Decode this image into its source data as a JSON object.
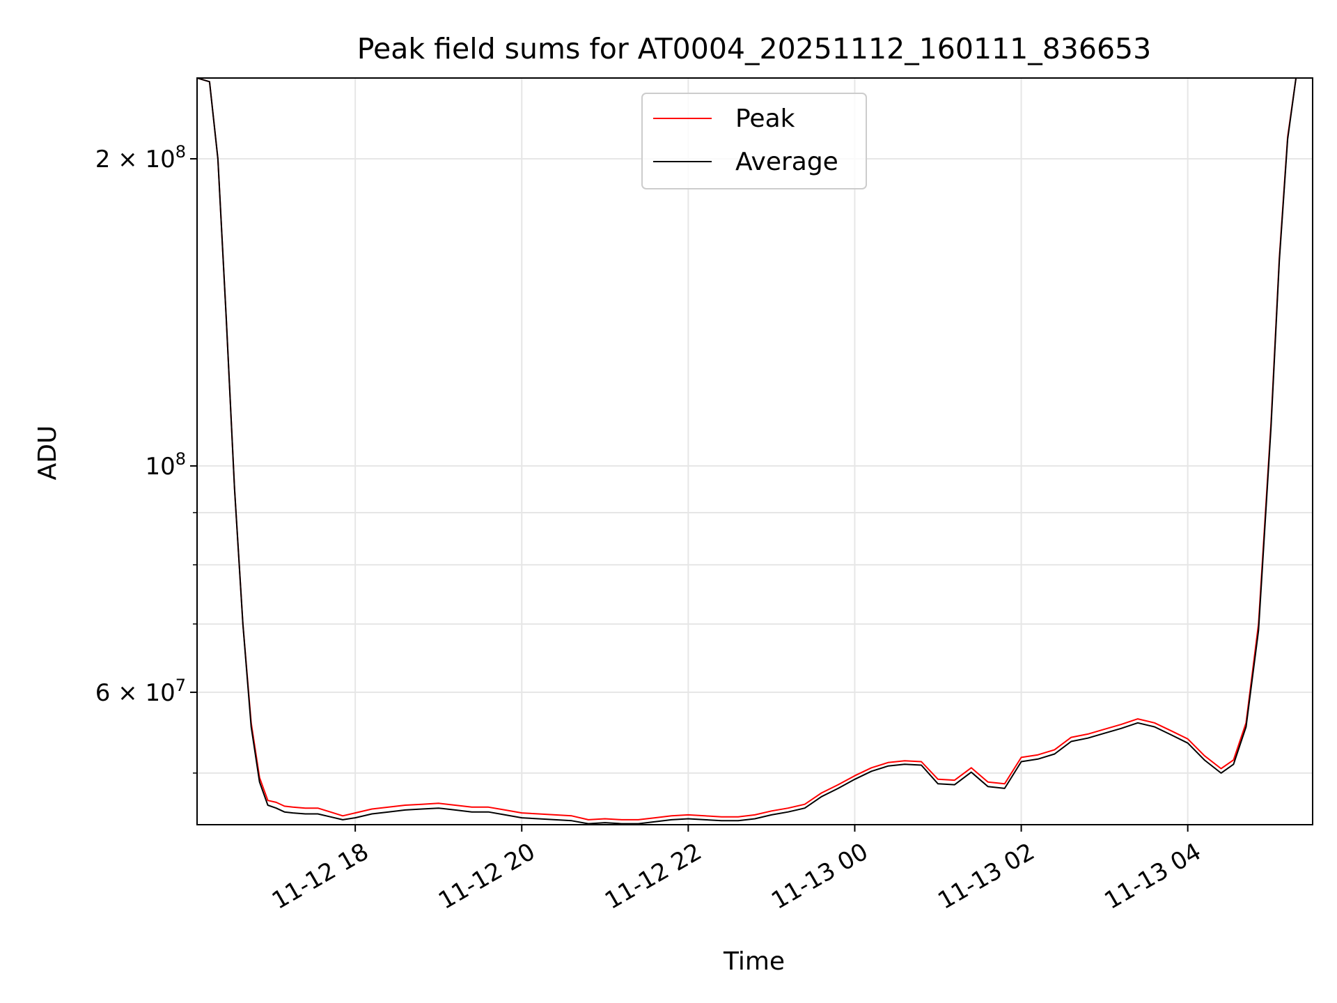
{
  "colors": {
    "peak": "#ff0000",
    "average": "#000000",
    "grid": "#e6e6e6",
    "axes": "#000000",
    "legend_border": "#cccccc"
  },
  "chart_data": {
    "type": "line",
    "title": "Peak field sums for AT0004_20251112_160111_836653",
    "xlabel": "Time",
    "ylabel": "ADU",
    "yscale": "log",
    "grid": true,
    "legend_position": "upper-center",
    "x_unit": "hours since 2025-11-12 16:00",
    "xlim": [
      16.1,
      29.5
    ],
    "ylim": [
      44500000,
      240000000
    ],
    "x_ticks": [
      {
        "x": 18,
        "label": "11-12 18"
      },
      {
        "x": 20,
        "label": "11-12 20"
      },
      {
        "x": 22,
        "label": "11-12 22"
      },
      {
        "x": 24,
        "label": "11-13 00"
      },
      {
        "x": 26,
        "label": "11-13 02"
      },
      {
        "x": 28,
        "label": "11-13 04"
      }
    ],
    "y_major_ticks": [
      {
        "value": 60000000,
        "base": "6 × 10",
        "exp": "7"
      },
      {
        "value": 100000000,
        "base": "10",
        "exp": "8"
      },
      {
        "value": 200000000,
        "base": "2 × 10",
        "exp": "8"
      }
    ],
    "y_minor_ticks": [
      50000000,
      70000000,
      80000000,
      90000000
    ],
    "x": [
      16.1,
      16.25,
      16.35,
      16.45,
      16.55,
      16.65,
      16.75,
      16.85,
      16.95,
      17.05,
      17.15,
      17.25,
      17.4,
      17.55,
      17.7,
      17.85,
      18.0,
      18.2,
      18.4,
      18.6,
      18.8,
      19.0,
      19.2,
      19.4,
      19.6,
      19.8,
      20.0,
      20.2,
      20.4,
      20.6,
      20.8,
      21.0,
      21.2,
      21.4,
      21.6,
      21.8,
      22.0,
      22.2,
      22.4,
      22.6,
      22.8,
      23.0,
      23.2,
      23.4,
      23.6,
      23.8,
      24.0,
      24.2,
      24.4,
      24.6,
      24.8,
      25.0,
      25.2,
      25.4,
      25.6,
      25.8,
      26.0,
      26.2,
      26.4,
      26.6,
      26.8,
      27.0,
      27.2,
      27.4,
      27.6,
      27.8,
      28.0,
      28.2,
      28.4,
      28.55,
      28.7,
      28.85,
      29.0,
      29.1,
      29.2,
      29.3,
      29.4,
      29.5
    ],
    "series": [
      {
        "name": "Peak",
        "values": [
          240000000,
          238000000,
          200000000,
          140000000,
          95000000,
          70000000,
          56000000,
          49500000,
          47000000,
          46800000,
          46400000,
          46300000,
          46200000,
          46200000,
          45800000,
          45400000,
          45700000,
          46100000,
          46300000,
          46500000,
          46600000,
          46700000,
          46500000,
          46300000,
          46300000,
          46000000,
          45700000,
          45600000,
          45500000,
          45400000,
          45000000,
          45100000,
          45000000,
          45000000,
          45200000,
          45400000,
          45500000,
          45400000,
          45300000,
          45300000,
          45500000,
          45900000,
          46200000,
          46600000,
          47800000,
          48700000,
          49700000,
          50600000,
          51200000,
          51400000,
          51300000,
          49300000,
          49200000,
          50600000,
          49000000,
          48800000,
          51800000,
          52100000,
          52700000,
          54200000,
          54600000,
          55200000,
          55800000,
          56500000,
          56000000,
          55000000,
          54000000,
          52000000,
          50500000,
          51500000,
          56000000,
          70000000,
          110000000,
          160000000,
          210000000,
          240000000,
          240000000,
          240000000
        ]
      },
      {
        "name": "Average",
        "values": [
          240000000,
          238000000,
          200000000,
          140000000,
          95000000,
          70000000,
          55500000,
          49000000,
          46500000,
          46200000,
          45800000,
          45700000,
          45600000,
          45600000,
          45300000,
          45000000,
          45200000,
          45600000,
          45800000,
          46000000,
          46100000,
          46200000,
          46000000,
          45800000,
          45800000,
          45500000,
          45200000,
          45100000,
          45000000,
          44900000,
          44600000,
          44700000,
          44600000,
          44600000,
          44800000,
          45000000,
          45100000,
          45000000,
          44900000,
          44900000,
          45100000,
          45500000,
          45800000,
          46200000,
          47400000,
          48300000,
          49300000,
          50200000,
          50800000,
          51000000,
          50900000,
          48800000,
          48700000,
          50100000,
          48500000,
          48300000,
          51300000,
          51600000,
          52200000,
          53700000,
          54100000,
          54700000,
          55300000,
          56000000,
          55500000,
          54500000,
          53500000,
          51500000,
          50000000,
          51000000,
          55500000,
          69000000,
          109000000,
          159000000,
          209000000,
          240000000,
          240000000,
          240000000
        ]
      }
    ]
  }
}
